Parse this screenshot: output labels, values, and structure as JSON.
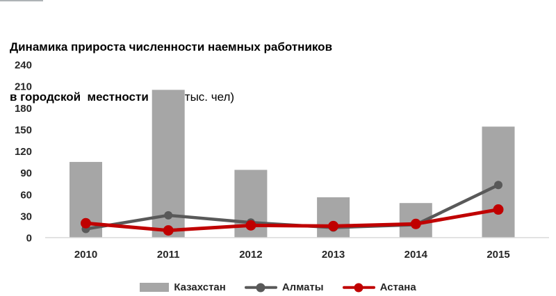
{
  "title": {
    "line1": "Динамика прироста численности наемных работников",
    "line2_bold": "в городской  местности в РК",
    "line2_units": "(тыс. чел)"
  },
  "chart_data": {
    "type": "bar",
    "subtype": "bar-and-line combo",
    "title": "Динамика прироста численности наемных работников в городской местности в РК (тыс. чел)",
    "categories": [
      "2010",
      "2011",
      "2012",
      "2013",
      "2014",
      "2015"
    ],
    "series": [
      {
        "name": "Казахстан",
        "type": "bar",
        "color": "#a6a6a6",
        "values": [
          105,
          205,
          94,
          56,
          48,
          154
        ]
      },
      {
        "name": "Алматы",
        "type": "line",
        "color": "#595959",
        "values": [
          12,
          31,
          21,
          14,
          18,
          73
        ]
      },
      {
        "name": "Астана",
        "type": "line",
        "color": "#c00000",
        "values": [
          20,
          10,
          17,
          16,
          19,
          39
        ]
      }
    ],
    "xlabel": "",
    "ylabel": "",
    "ylim": [
      0,
      240
    ],
    "ytick_step": 30,
    "grid": false,
    "legend_position": "bottom",
    "axis_line_color": "#d9d9d9",
    "tick_label_color": "#262626",
    "background_color": "#ffffff"
  }
}
